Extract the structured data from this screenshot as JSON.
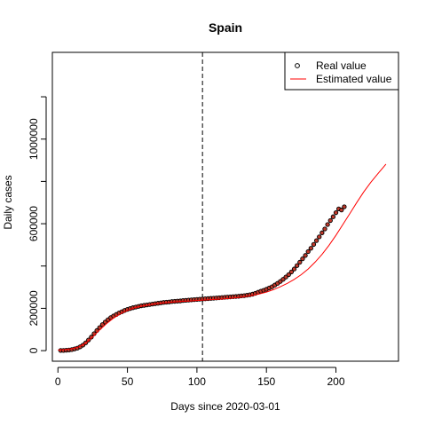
{
  "chart_data": {
    "type": "line",
    "title": "Spain",
    "xlabel": "Days since 2020-03-01",
    "ylabel": "Daily cases",
    "xlim": [
      -4,
      245
    ],
    "ylim": [
      -50000,
      1410000
    ],
    "x_ticks": [
      0,
      50,
      100,
      150,
      200
    ],
    "x_tick_labels": [
      "0",
      "50",
      "100",
      "150",
      "200"
    ],
    "y_ticks": [
      0,
      200000,
      400000,
      600000,
      800000,
      1000000,
      1200000
    ],
    "y_tick_labels": [
      "0",
      "200000",
      "",
      "600000",
      "",
      "1000000",
      ""
    ],
    "vline": {
      "x": 104,
      "style": "dashed"
    },
    "legend_position": "top-right",
    "series": [
      {
        "name": "Real value",
        "style": "points",
        "color": "#000000",
        "fill": "#c0392b",
        "x": [
          2,
          4,
          6,
          8,
          10,
          12,
          14,
          16,
          18,
          20,
          22,
          24,
          26,
          28,
          30,
          32,
          34,
          36,
          38,
          40,
          42,
          44,
          46,
          48,
          50,
          52,
          54,
          56,
          58,
          60,
          62,
          64,
          66,
          68,
          70,
          72,
          74,
          76,
          78,
          80,
          82,
          84,
          86,
          88,
          90,
          92,
          94,
          96,
          98,
          100,
          102,
          104,
          106,
          108,
          110,
          112,
          114,
          116,
          118,
          120,
          122,
          124,
          126,
          128,
          130,
          132,
          134,
          136,
          138,
          140,
          142,
          144,
          146,
          148,
          150,
          152,
          154,
          156,
          158,
          160,
          162,
          164,
          166,
          168,
          170,
          172,
          174,
          176,
          178,
          180,
          182,
          184,
          186,
          188,
          190,
          192,
          194,
          196,
          198,
          200,
          202,
          204,
          206
        ],
        "y": [
          1000,
          1000,
          2000,
          3000,
          5000,
          8000,
          12000,
          18000,
          26000,
          37000,
          50000,
          64000,
          80000,
          95000,
          109000,
          123000,
          135000,
          146000,
          156000,
          164000,
          171000,
          178000,
          184000,
          190000,
          195000,
          199000,
          203000,
          206000,
          209000,
          212000,
          214000,
          216000,
          218000,
          220000,
          222000,
          224000,
          226000,
          228000,
          229000,
          230000,
          232000,
          233000,
          234000,
          235000,
          237000,
          238000,
          239000,
          240000,
          241000,
          242000,
          243000,
          244000,
          245000,
          246000,
          247000,
          248000,
          249000,
          250000,
          251000,
          252000,
          253000,
          254000,
          255000,
          256000,
          257000,
          259000,
          260000,
          262000,
          264000,
          267000,
          271000,
          276000,
          281000,
          285000,
          290000,
          296000,
          302000,
          310000,
          318000,
          327000,
          337000,
          348000,
          359000,
          372000,
          386000,
          402000,
          418000,
          434000,
          450000,
          468000,
          484000,
          502000,
          520000,
          538000,
          557000,
          575000,
          596000,
          615000,
          633000,
          652000,
          670000,
          665000,
          680000
        ]
      },
      {
        "name": "Estimated value",
        "style": "line",
        "color": "#ff0000",
        "x": [
          0,
          5,
          10,
          15,
          20,
          25,
          30,
          35,
          40,
          45,
          50,
          55,
          60,
          65,
          70,
          75,
          80,
          85,
          90,
          95,
          100,
          105,
          110,
          115,
          120,
          125,
          130,
          135,
          140,
          145,
          150,
          155,
          160,
          165,
          170,
          175,
          180,
          185,
          190,
          195,
          200,
          205,
          210,
          215,
          220,
          225,
          230,
          236
        ],
        "y": [
          3000,
          5000,
          9000,
          18000,
          35000,
          64000,
          98000,
          128000,
          154000,
          174000,
          190000,
          202000,
          210000,
          216000,
          221000,
          225000,
          228000,
          231000,
          233000,
          235000,
          237000,
          239000,
          241000,
          243000,
          245000,
          248000,
          251000,
          255000,
          261000,
          268000,
          277000,
          288000,
          302000,
          318000,
          337000,
          359000,
          386000,
          418000,
          455000,
          498000,
          545000,
          596000,
          648000,
          700000,
          750000,
          795000,
          835000,
          882000
        ]
      }
    ]
  }
}
